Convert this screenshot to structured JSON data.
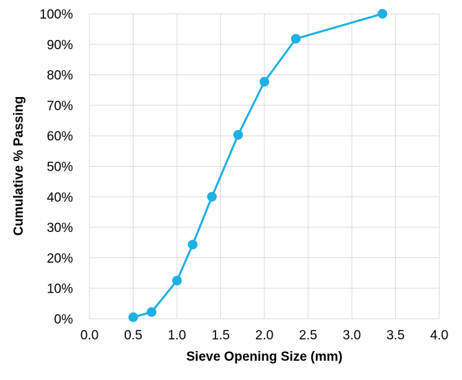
{
  "chart_data": {
    "type": "scatter",
    "xlabel": "Sieve Opening Size (mm)",
    "ylabel": "Cumulative % Passing",
    "xlim": [
      0,
      4
    ],
    "ylim": [
      0,
      100
    ],
    "x_ticks": [
      "0.0",
      "0.5",
      "1.0",
      "1.5",
      "2.0",
      "2.5",
      "3.0",
      "3.5",
      "4.0"
    ],
    "y_ticks": [
      "0%",
      "10%",
      "20%",
      "30%",
      "40%",
      "50%",
      "60%",
      "70%",
      "80%",
      "90%",
      "100%"
    ],
    "grid": true,
    "series": [
      {
        "color": "#1fb0e4",
        "x": [
          0.5,
          0.71,
          1.0,
          1.18,
          1.4,
          1.7,
          2.0,
          2.36,
          3.35
        ],
        "y": [
          0.5,
          2.2,
          12.5,
          24.3,
          40.0,
          60.3,
          77.7,
          91.8,
          100.0
        ]
      }
    ]
  }
}
